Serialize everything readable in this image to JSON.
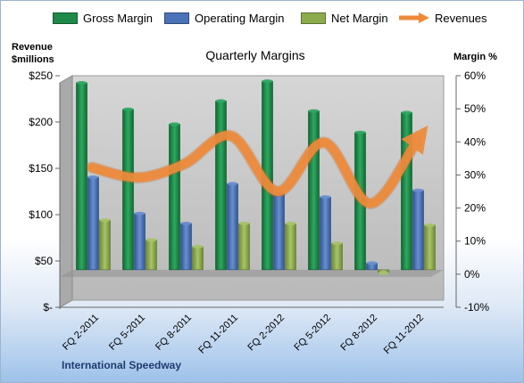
{
  "chart_data": {
    "type": "bar",
    "title": "Quarterly Margins",
    "company_label": "International Speedway",
    "left_axis_title": [
      "Revenue",
      "$millions"
    ],
    "right_axis_title": "Margin %",
    "categories": [
      "FQ 2-2011",
      "FQ 5-2011",
      "FQ 8-2011",
      "FQ 11-2011",
      "FQ 2-2012",
      "FQ 5-2012",
      "FQ 8-2012",
      "FQ 11-2012"
    ],
    "left_axis": {
      "min": 0,
      "max": 250,
      "ticks": [
        0,
        50,
        100,
        150,
        200,
        250
      ],
      "tick_labels": [
        "$-",
        "$50",
        "$100",
        "$150",
        "$200",
        "$250"
      ]
    },
    "right_axis": {
      "min": -10,
      "max": 60,
      "ticks": [
        -10,
        0,
        10,
        20,
        30,
        40,
        50,
        60
      ],
      "tick_labels": [
        "-10%",
        "0%",
        "10%",
        "20%",
        "30%",
        "40%",
        "50%",
        "60%"
      ]
    },
    "series": [
      {
        "name": "Gross Margin",
        "axis": "right",
        "kind": "bar",
        "color": "#1e8a4a",
        "values": [
          56.5,
          48.5,
          44,
          51,
          57,
          48,
          41.5,
          47.5
        ]
      },
      {
        "name": "Operating Margin",
        "axis": "right",
        "kind": "bar",
        "color": "#4a72b8",
        "values": [
          28,
          17,
          14,
          26,
          23,
          22,
          2,
          24
        ]
      },
      {
        "name": "Net Margin",
        "axis": "right",
        "kind": "bar",
        "color": "#8cab4c",
        "values": [
          15,
          9,
          7,
          14,
          14,
          8,
          -1,
          13.5
        ]
      },
      {
        "name": "Revenues",
        "axis": "left",
        "kind": "line",
        "color": "#ee8a3a",
        "values": [
          151,
          140,
          155,
          185,
          125,
          178,
          112,
          180
        ]
      }
    ],
    "grid": false,
    "legend_position": "top"
  }
}
